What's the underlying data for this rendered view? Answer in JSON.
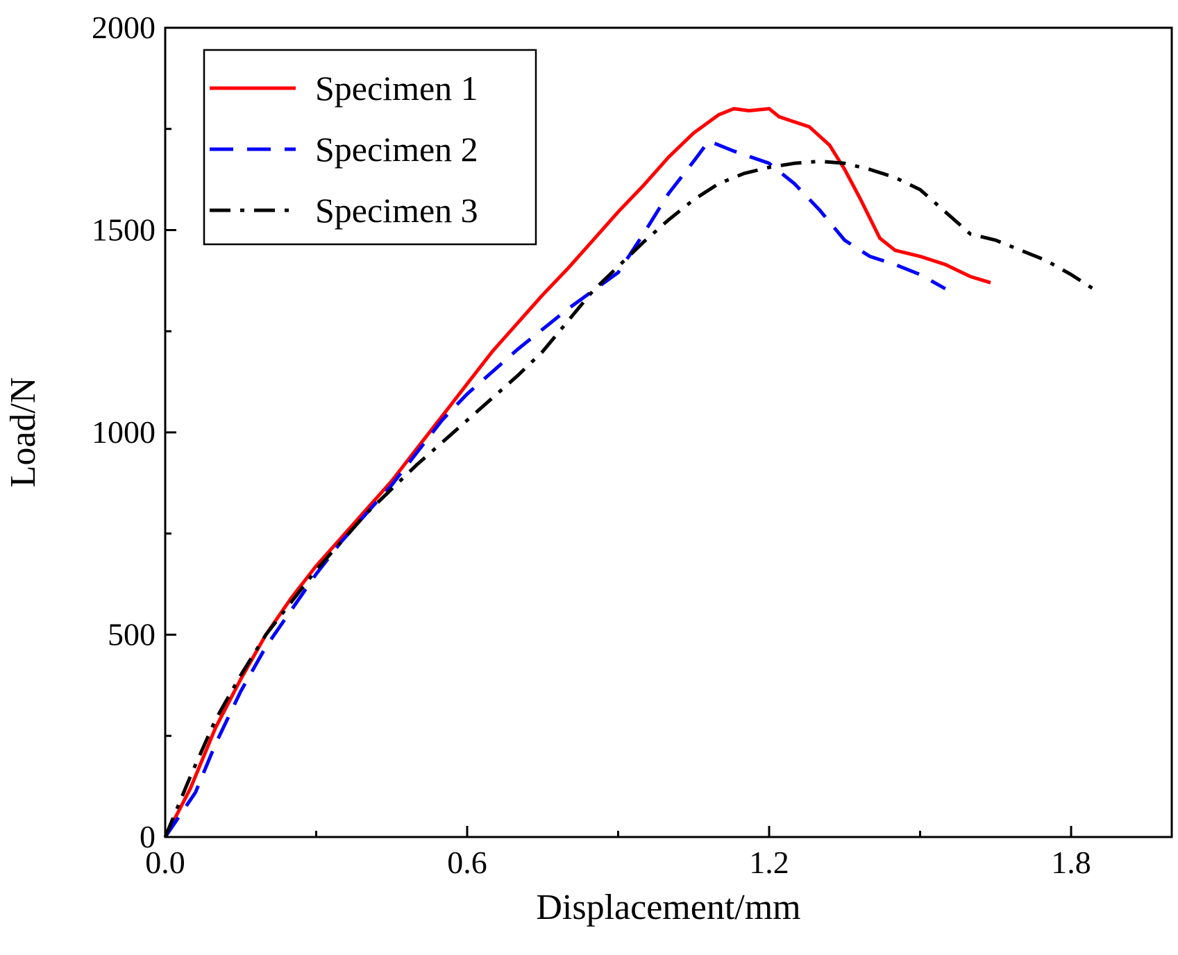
{
  "chart_data": {
    "type": "line",
    "title": "",
    "xlabel": "Displacement/mm",
    "ylabel": "Load/N",
    "xlim": [
      0,
      2.0
    ],
    "ylim": [
      0,
      2000
    ],
    "x_ticks": [
      0.0,
      0.6,
      1.2,
      1.8
    ],
    "x_tick_labels": [
      "0.0",
      "0.6",
      "1.2",
      "1.8"
    ],
    "x_minor_ticks": [
      0.3,
      0.9,
      1.5
    ],
    "y_ticks": [
      0,
      500,
      1000,
      1500,
      2000
    ],
    "y_tick_labels": [
      "0",
      "500",
      "1000",
      "1500",
      "2000"
    ],
    "y_minor_ticks": [
      250,
      750,
      1250,
      1750
    ],
    "grid": false,
    "legend_position": "top-left",
    "series": [
      {
        "name": "Specimen 1",
        "color": "#ff0000",
        "style": "solid",
        "points": [
          [
            0,
            0
          ],
          [
            0.05,
            120
          ],
          [
            0.1,
            270
          ],
          [
            0.15,
            390
          ],
          [
            0.2,
            500
          ],
          [
            0.25,
            590
          ],
          [
            0.3,
            670
          ],
          [
            0.35,
            740
          ],
          [
            0.4,
            810
          ],
          [
            0.45,
            880
          ],
          [
            0.5,
            960
          ],
          [
            0.55,
            1040
          ],
          [
            0.6,
            1120
          ],
          [
            0.65,
            1200
          ],
          [
            0.7,
            1270
          ],
          [
            0.75,
            1340
          ],
          [
            0.8,
            1405
          ],
          [
            0.85,
            1475
          ],
          [
            0.9,
            1545
          ],
          [
            0.95,
            1610
          ],
          [
            1.0,
            1680
          ],
          [
            1.05,
            1740
          ],
          [
            1.1,
            1785
          ],
          [
            1.13,
            1800
          ],
          [
            1.16,
            1795
          ],
          [
            1.2,
            1800
          ],
          [
            1.22,
            1780
          ],
          [
            1.28,
            1755
          ],
          [
            1.32,
            1710
          ],
          [
            1.35,
            1650
          ],
          [
            1.38,
            1580
          ],
          [
            1.42,
            1480
          ],
          [
            1.45,
            1450
          ],
          [
            1.5,
            1435
          ],
          [
            1.55,
            1415
          ],
          [
            1.6,
            1385
          ],
          [
            1.64,
            1370
          ]
        ]
      },
      {
        "name": "Specimen 2",
        "color": "#0000ff",
        "style": "dashed",
        "points": [
          [
            0,
            0
          ],
          [
            0.06,
            110
          ],
          [
            0.1,
            230
          ],
          [
            0.15,
            360
          ],
          [
            0.2,
            470
          ],
          [
            0.25,
            560
          ],
          [
            0.3,
            650
          ],
          [
            0.35,
            730
          ],
          [
            0.4,
            800
          ],
          [
            0.45,
            870
          ],
          [
            0.5,
            950
          ],
          [
            0.55,
            1030
          ],
          [
            0.6,
            1095
          ],
          [
            0.65,
            1150
          ],
          [
            0.7,
            1205
          ],
          [
            0.75,
            1255
          ],
          [
            0.8,
            1305
          ],
          [
            0.85,
            1350
          ],
          [
            0.9,
            1395
          ],
          [
            0.95,
            1490
          ],
          [
            1.0,
            1590
          ],
          [
            1.05,
            1670
          ],
          [
            1.08,
            1720
          ],
          [
            1.13,
            1695
          ],
          [
            1.2,
            1665
          ],
          [
            1.25,
            1615
          ],
          [
            1.3,
            1550
          ],
          [
            1.35,
            1475
          ],
          [
            1.4,
            1435
          ],
          [
            1.45,
            1415
          ],
          [
            1.5,
            1390
          ],
          [
            1.55,
            1355
          ]
        ]
      },
      {
        "name": "Specimen 3",
        "color": "#000000",
        "style": "dashdot",
        "points": [
          [
            0,
            0
          ],
          [
            0.05,
            150
          ],
          [
            0.1,
            290
          ],
          [
            0.15,
            400
          ],
          [
            0.2,
            500
          ],
          [
            0.25,
            580
          ],
          [
            0.3,
            660
          ],
          [
            0.35,
            730
          ],
          [
            0.4,
            800
          ],
          [
            0.45,
            860
          ],
          [
            0.5,
            920
          ],
          [
            0.55,
            975
          ],
          [
            0.6,
            1030
          ],
          [
            0.65,
            1085
          ],
          [
            0.7,
            1140
          ],
          [
            0.75,
            1200
          ],
          [
            0.8,
            1275
          ],
          [
            0.85,
            1350
          ],
          [
            0.9,
            1410
          ],
          [
            0.95,
            1470
          ],
          [
            1.0,
            1525
          ],
          [
            1.05,
            1575
          ],
          [
            1.1,
            1615
          ],
          [
            1.15,
            1640
          ],
          [
            1.2,
            1655
          ],
          [
            1.25,
            1665
          ],
          [
            1.3,
            1670
          ],
          [
            1.35,
            1665
          ],
          [
            1.4,
            1650
          ],
          [
            1.45,
            1630
          ],
          [
            1.5,
            1600
          ],
          [
            1.55,
            1545
          ],
          [
            1.6,
            1490
          ],
          [
            1.65,
            1475
          ],
          [
            1.7,
            1450
          ],
          [
            1.75,
            1425
          ],
          [
            1.8,
            1390
          ],
          [
            1.85,
            1350
          ]
        ]
      }
    ]
  }
}
